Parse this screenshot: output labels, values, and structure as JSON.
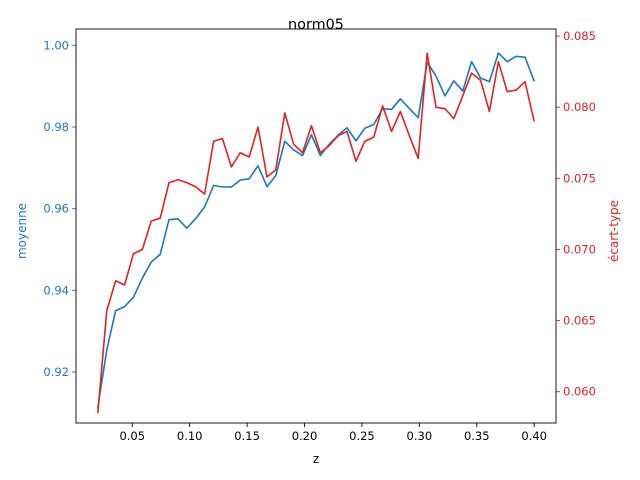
{
  "chart_data": {
    "type": "line",
    "title": "norm05",
    "xlabel": "z",
    "ylabel_left": "moyenne",
    "ylabel_right": "écart-type",
    "xlim": [
      0.001,
      0.419
    ],
    "ylim_left": [
      0.9075,
      1.004
    ],
    "ylim_right": [
      0.0578,
      0.0855
    ],
    "x_ticks": [
      0.05,
      0.1,
      0.15,
      0.2,
      0.25,
      0.3,
      0.35,
      0.4
    ],
    "x_tick_labels": [
      "0.05",
      "0.10",
      "0.15",
      "0.20",
      "0.25",
      "0.30",
      "0.35",
      "0.40"
    ],
    "y_left_ticks": [
      0.92,
      0.94,
      0.96,
      0.98,
      1.0
    ],
    "y_left_tick_labels": [
      "0.92",
      "0.94",
      "0.96",
      "0.98",
      "1.00"
    ],
    "y_right_ticks": [
      0.06,
      0.065,
      0.07,
      0.075,
      0.08,
      0.085
    ],
    "y_right_tick_labels": [
      "0.060",
      "0.065",
      "0.070",
      "0.075",
      "0.080",
      "0.085"
    ],
    "left_axis_color": "#1f77b4",
    "right_axis_color": "#d62728",
    "grid": false,
    "x": [
      0.02,
      0.0278,
      0.0355,
      0.0433,
      0.051,
      0.0588,
      0.0665,
      0.0743,
      0.082,
      0.0898,
      0.0975,
      0.1053,
      0.113,
      0.1208,
      0.1285,
      0.1363,
      0.144,
      0.1518,
      0.1595,
      0.1673,
      0.175,
      0.1828,
      0.1905,
      0.1983,
      0.206,
      0.2138,
      0.2215,
      0.2293,
      0.237,
      0.2448,
      0.2525,
      0.2603,
      0.268,
      0.2758,
      0.2835,
      0.2913,
      0.299,
      0.3068,
      0.3145,
      0.3223,
      0.33,
      0.3378,
      0.3455,
      0.3533,
      0.361,
      0.3688,
      0.3765,
      0.3843,
      0.392,
      0.4
    ],
    "series": [
      {
        "name": "moyenne",
        "axis": "left",
        "color": "#1f77b4",
        "values": [
          0.9113,
          0.9254,
          0.935,
          0.936,
          0.9383,
          0.943,
          0.9469,
          0.9488,
          0.9573,
          0.9575,
          0.9552,
          0.9576,
          0.9604,
          0.9657,
          0.9653,
          0.9653,
          0.967,
          0.9673,
          0.9705,
          0.9654,
          0.9681,
          0.9765,
          0.9744,
          0.973,
          0.9781,
          0.973,
          0.9758,
          0.978,
          0.9798,
          0.9766,
          0.9797,
          0.9806,
          0.9845,
          0.9843,
          0.9869,
          0.9845,
          0.9823,
          0.9958,
          0.9925,
          0.9876,
          0.9913,
          0.9888,
          0.996,
          0.992,
          0.9911,
          0.9981,
          0.996,
          0.9973,
          0.9971,
          0.9912
        ]
      },
      {
        "name": "écart-type",
        "axis": "right",
        "color": "#d62728",
        "values": [
          0.0585,
          0.0657,
          0.0678,
          0.0675,
          0.0697,
          0.07,
          0.072,
          0.0722,
          0.0747,
          0.0749,
          0.0747,
          0.0744,
          0.0739,
          0.0776,
          0.0778,
          0.0758,
          0.0768,
          0.0765,
          0.0786,
          0.0751,
          0.0756,
          0.0796,
          0.0774,
          0.0768,
          0.0787,
          0.0768,
          0.0773,
          0.078,
          0.0783,
          0.0762,
          0.0776,
          0.0779,
          0.0801,
          0.0783,
          0.0797,
          0.078,
          0.0764,
          0.0838,
          0.08,
          0.0799,
          0.0792,
          0.0808,
          0.0824,
          0.0819,
          0.0797,
          0.0832,
          0.0811,
          0.0812,
          0.0818,
          0.079
        ]
      }
    ]
  }
}
